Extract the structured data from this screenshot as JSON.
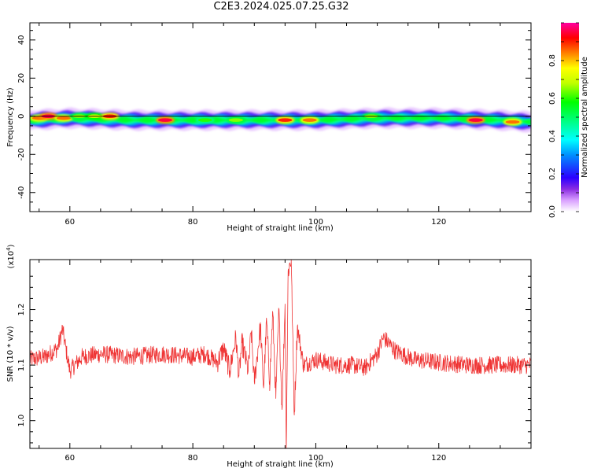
{
  "title": "C2E3.2024.025.07.25.G32",
  "chart_data": [
    {
      "type": "heatmap",
      "xlabel": "Height of straight line (km)",
      "ylabel": "Frequency (Hz)",
      "xlim": [
        53.5,
        135
      ],
      "ylim": [
        -50,
        49
      ],
      "xticks": [
        60,
        80,
        100,
        120
      ],
      "yticks": [
        40,
        20,
        0,
        -20,
        -40
      ],
      "band": {
        "center_freq_hz": [
          [
            53.5,
            -2
          ],
          [
            60,
            -1
          ],
          [
            70,
            -2
          ],
          [
            80,
            -2
          ],
          [
            90,
            -2
          ],
          [
            100,
            -2
          ],
          [
            110,
            -1
          ],
          [
            120,
            -1
          ],
          [
            130,
            -2
          ],
          [
            135,
            -3
          ]
        ],
        "width_hz": 4
      },
      "hot_spots": [
        {
          "x": 55,
          "y": -1,
          "level": 0.85
        },
        {
          "x": 56.5,
          "y": 0,
          "level": 0.95
        },
        {
          "x": 59,
          "y": -1,
          "level": 0.85
        },
        {
          "x": 61.5,
          "y": 0,
          "level": 0.65
        },
        {
          "x": 64,
          "y": 0,
          "level": 0.7
        },
        {
          "x": 66.5,
          "y": 0,
          "level": 0.9
        },
        {
          "x": 75.5,
          "y": -2,
          "level": 0.95
        },
        {
          "x": 82,
          "y": -2,
          "level": 0.6
        },
        {
          "x": 87,
          "y": -2,
          "level": 0.65
        },
        {
          "x": 95,
          "y": -2,
          "level": 0.9
        },
        {
          "x": 99,
          "y": -2,
          "level": 0.85
        },
        {
          "x": 109,
          "y": 0,
          "level": 0.65
        },
        {
          "x": 126,
          "y": -2,
          "level": 0.95
        },
        {
          "x": 132,
          "y": -3,
          "level": 0.85
        }
      ],
      "colorbar": {
        "label": "Normalized spectral amplitude",
        "ticks": [
          "0.0",
          "0.2",
          "0.4",
          "0.6",
          "0.8"
        ],
        "tick_values": [
          0.0,
          0.2,
          0.4,
          0.6,
          0.8
        ],
        "range": [
          0,
          1
        ]
      }
    },
    {
      "type": "line",
      "xlabel": "Height of straight line (km)",
      "ylabel": "SNR (10 * v/v)",
      "y_multiplier_label": "(x10^4)",
      "xlim": [
        53.5,
        135
      ],
      "ylim": [
        0.95,
        1.29
      ],
      "xticks": [
        60,
        80,
        100,
        120
      ],
      "yticks": [
        "1.0",
        "1.1",
        "1.2"
      ],
      "ytick_values": [
        1.0,
        1.1,
        1.2
      ],
      "line_color": "#ef3535",
      "series": [
        {
          "x": [
            53.5,
            56,
            58,
            58.8,
            59.5,
            60,
            62,
            65,
            70,
            75,
            80,
            82,
            84,
            85,
            86,
            87,
            87.5,
            88,
            89,
            89.5,
            90,
            91,
            91.5,
            92,
            92.5,
            93,
            93.5,
            94,
            94.5,
            95,
            95.2,
            95.5,
            96,
            96.5,
            97,
            98,
            100,
            103,
            106,
            108,
            110,
            111,
            113,
            116,
            120,
            125,
            130,
            135
          ],
          "y": [
            1.11,
            1.115,
            1.13,
            1.165,
            1.12,
            1.09,
            1.115,
            1.12,
            1.115,
            1.12,
            1.115,
            1.12,
            1.105,
            1.13,
            1.09,
            1.15,
            1.08,
            1.14,
            1.09,
            1.16,
            1.07,
            1.17,
            1.06,
            1.18,
            1.07,
            1.195,
            1.04,
            1.2,
            1.02,
            1.21,
            0.95,
            1.27,
            1.29,
            1.01,
            1.17,
            1.1,
            1.11,
            1.1,
            1.1,
            1.095,
            1.12,
            1.15,
            1.125,
            1.11,
            1.105,
            1.1,
            1.1,
            1.1
          ]
        }
      ]
    }
  ]
}
